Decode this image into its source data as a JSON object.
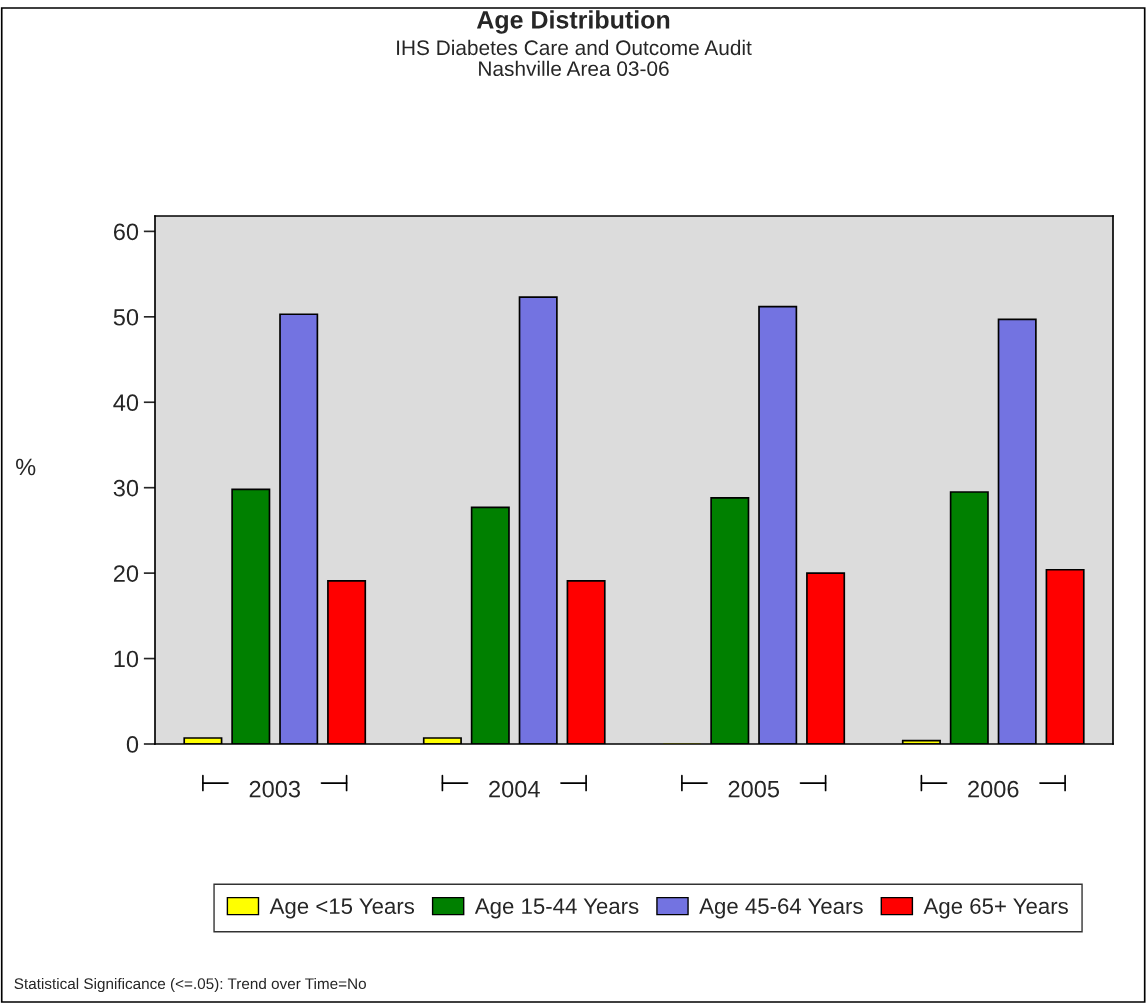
{
  "chart_data": {
    "type": "bar",
    "title": "Age Distribution",
    "subtitle": "IHS Diabetes Care and Outcome Audit\nNashville Area 03-06",
    "ylabel": "%",
    "categories": [
      "2003",
      "2004",
      "2005",
      "2006"
    ],
    "series": [
      {
        "name": "Age <15 Years",
        "color": "#ffff00",
        "values": [
          0.7,
          0.7,
          0.0,
          0.4
        ]
      },
      {
        "name": "Age 15-44 Years",
        "color": "#008000",
        "values": [
          29.8,
          27.7,
          28.8,
          29.5
        ]
      },
      {
        "name": "Age 45-64 Years",
        "color": "#7373e1",
        "values": [
          50.3,
          52.3,
          51.2,
          49.7
        ]
      },
      {
        "name": "Age 65+ Years",
        "color": "#ff0000",
        "values": [
          19.1,
          19.1,
          20.0,
          20.4
        ]
      }
    ],
    "ylim": [
      0,
      61.8
    ],
    "yticks": [
      0,
      10,
      20,
      30,
      40,
      50,
      60
    ],
    "grid": false,
    "legend": "bottom",
    "annotations": [
      "Statistical Significance (<=.05): Trend over Time=No"
    ]
  }
}
